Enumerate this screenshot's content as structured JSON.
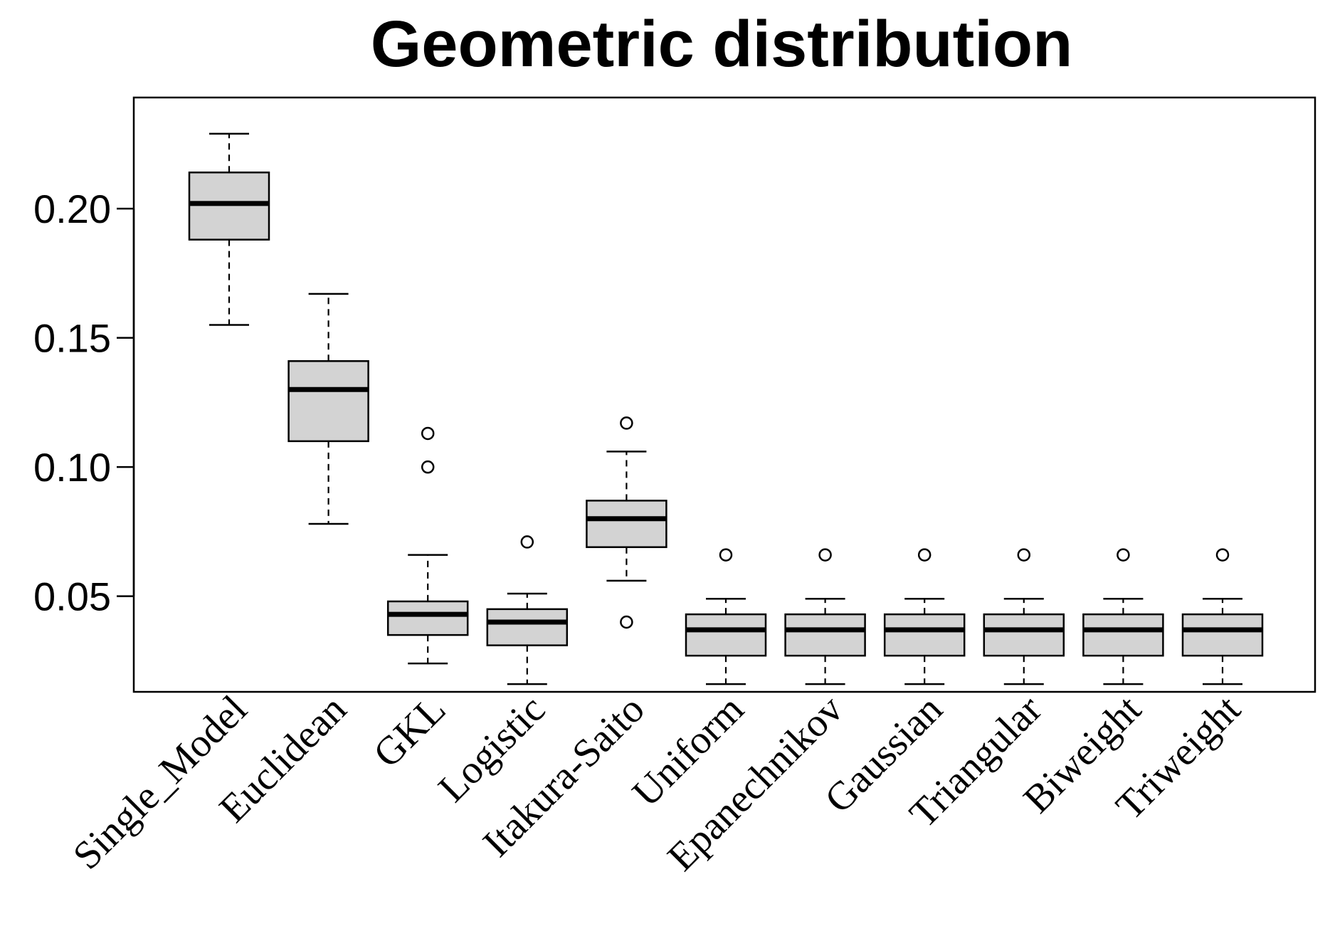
{
  "chart_data": {
    "type": "boxplot",
    "title": "Geometric distribution",
    "xlabel": "",
    "ylabel": "",
    "ylim": [
      0.013,
      0.243
    ],
    "yticks": [
      0.05,
      0.1,
      0.15,
      0.2
    ],
    "ytick_labels": [
      "0.05",
      "0.10",
      "0.15",
      "0.20"
    ],
    "grid": false,
    "colors": {
      "box_fill": "#d3d3d3",
      "stroke": "#000000",
      "background": "#ffffff"
    },
    "categories": [
      "Single_Model",
      "Euclidean",
      "GKL",
      "Logistic",
      "Itakura-Saito",
      "Uniform",
      "Epanechnikov",
      "Gaussian",
      "Triangular",
      "Biweight",
      "Triweight"
    ],
    "boxes": [
      {
        "name": "Single_Model",
        "whisker_low": 0.155,
        "q1": 0.188,
        "median": 0.202,
        "q3": 0.214,
        "whisker_high": 0.229,
        "outliers": []
      },
      {
        "name": "Euclidean",
        "whisker_low": 0.078,
        "q1": 0.11,
        "median": 0.13,
        "q3": 0.141,
        "whisker_high": 0.167,
        "outliers": []
      },
      {
        "name": "GKL",
        "whisker_low": 0.024,
        "q1": 0.035,
        "median": 0.043,
        "q3": 0.048,
        "whisker_high": 0.066,
        "outliers": [
          0.1,
          0.113
        ]
      },
      {
        "name": "Logistic",
        "whisker_low": 0.016,
        "q1": 0.031,
        "median": 0.04,
        "q3": 0.045,
        "whisker_high": 0.051,
        "outliers": [
          0.071
        ]
      },
      {
        "name": "Itakura-Saito",
        "whisker_low": 0.056,
        "q1": 0.069,
        "median": 0.08,
        "q3": 0.087,
        "whisker_high": 0.106,
        "outliers": [
          0.04,
          0.117
        ]
      },
      {
        "name": "Uniform",
        "whisker_low": 0.016,
        "q1": 0.027,
        "median": 0.037,
        "q3": 0.043,
        "whisker_high": 0.049,
        "outliers": [
          0.066
        ]
      },
      {
        "name": "Epanechnikov",
        "whisker_low": 0.016,
        "q1": 0.027,
        "median": 0.037,
        "q3": 0.043,
        "whisker_high": 0.049,
        "outliers": [
          0.066
        ]
      },
      {
        "name": "Gaussian",
        "whisker_low": 0.016,
        "q1": 0.027,
        "median": 0.037,
        "q3": 0.043,
        "whisker_high": 0.049,
        "outliers": [
          0.066
        ]
      },
      {
        "name": "Triangular",
        "whisker_low": 0.016,
        "q1": 0.027,
        "median": 0.037,
        "q3": 0.043,
        "whisker_high": 0.049,
        "outliers": [
          0.066
        ]
      },
      {
        "name": "Biweight",
        "whisker_low": 0.016,
        "q1": 0.027,
        "median": 0.037,
        "q3": 0.043,
        "whisker_high": 0.049,
        "outliers": [
          0.066
        ]
      },
      {
        "name": "Triweight",
        "whisker_low": 0.016,
        "q1": 0.027,
        "median": 0.037,
        "q3": 0.043,
        "whisker_high": 0.049,
        "outliers": [
          0.066
        ]
      }
    ]
  }
}
